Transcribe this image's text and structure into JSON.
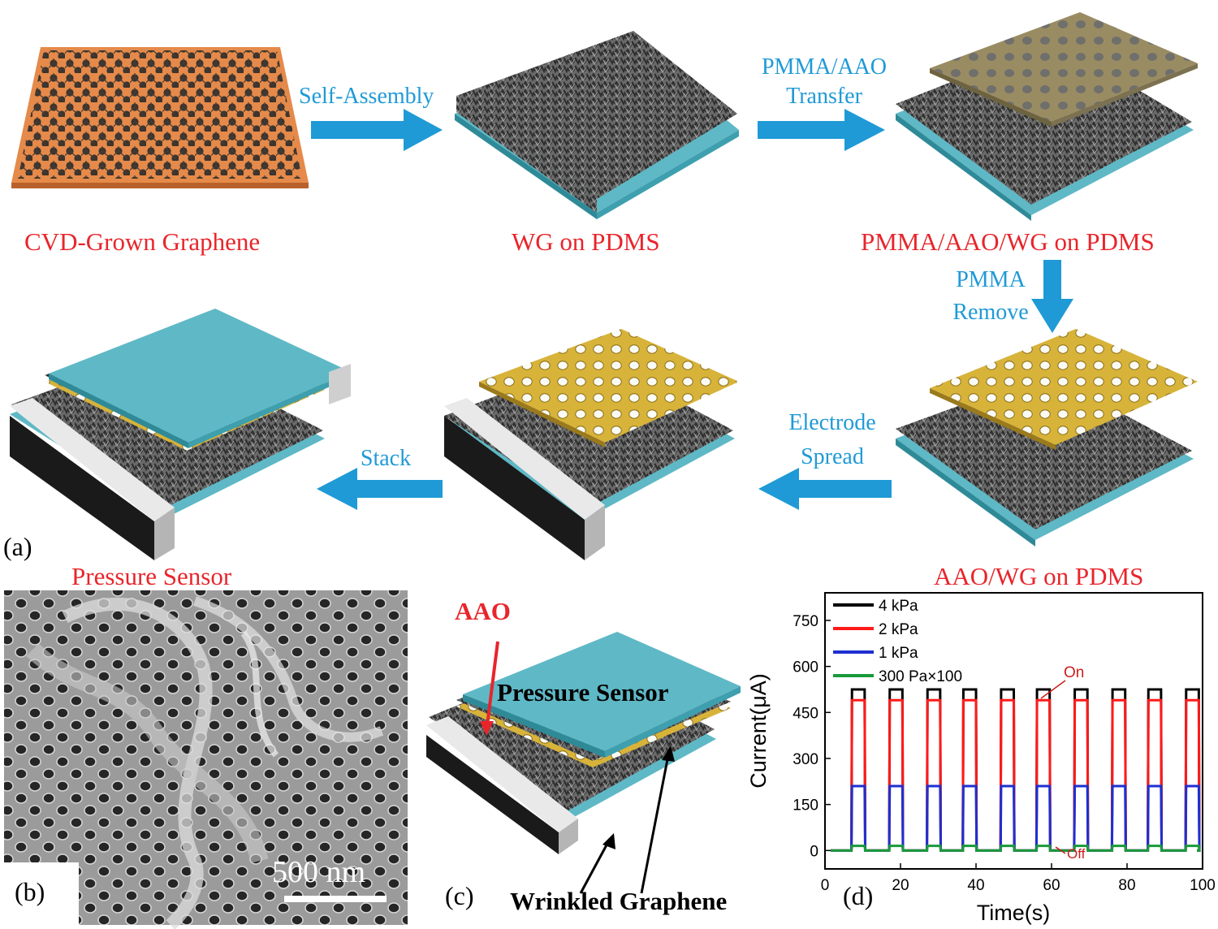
{
  "panel_a": {
    "letter": "(a)",
    "stages": {
      "cvd": "CVD-Grown Graphene",
      "wg": "WG on PDMS",
      "pmma_aao_wg": "PMMA/AAO/WG on PDMS",
      "aao_wg": "AAO/WG on PDMS",
      "sensor": "Pressure Sensor"
    },
    "steps": {
      "self_assembly": "Self-Assembly",
      "transfer_line1": "PMMA/AAO",
      "transfer_line2": "Transfer",
      "remove_line1": "PMMA",
      "remove_line2": "Remove",
      "electrode_line1": "Electrode",
      "electrode_line2": "Spread",
      "stack": "Stack"
    }
  },
  "panel_b": {
    "letter": "(b)",
    "scale_bar": "500 nm"
  },
  "panel_c": {
    "letter": "(c)",
    "aao": "AAO",
    "sensor": "Pressure Sensor",
    "wrinkled": "Wrinkled Graphene"
  },
  "panel_d": {
    "letter": "(d)",
    "annotation_on": "On",
    "annotation_off": "Off"
  },
  "colors": {
    "label_red": "#e8252b",
    "arrow_blue": "#1f9ad6",
    "pdms_cyan": "#5fb8c6",
    "gold": "#d7b33a",
    "copper": "#e58a4a"
  },
  "chart_data": {
    "type": "line",
    "xlabel": "Time(s)",
    "ylabel": "Current(μA)",
    "xlim": [
      0,
      100
    ],
    "ylim": [
      -60,
      840
    ],
    "xticks": [
      0,
      20,
      40,
      60,
      80,
      100
    ],
    "yticks": [
      0,
      150,
      300,
      450,
      600,
      750
    ],
    "legend_position": "top-left",
    "pulse_starts": [
      7,
      17,
      27,
      36.5,
      46.5,
      56,
      66,
      76,
      85.5,
      95.5
    ],
    "pulse_width": 3.5,
    "series": [
      {
        "name": "4 kPa",
        "color": "#000000",
        "on_value": 525,
        "off_value": 0
      },
      {
        "name": "2 kPa",
        "color": "#ff1a1a",
        "on_value": 490,
        "off_value": 0
      },
      {
        "name": "1 kPa",
        "color": "#1f2fd0",
        "on_value": 210,
        "off_value": 0
      },
      {
        "name": "300 Pa×100",
        "color": "#1a9a3a",
        "on_value": 15,
        "off_value": 0
      }
    ]
  }
}
